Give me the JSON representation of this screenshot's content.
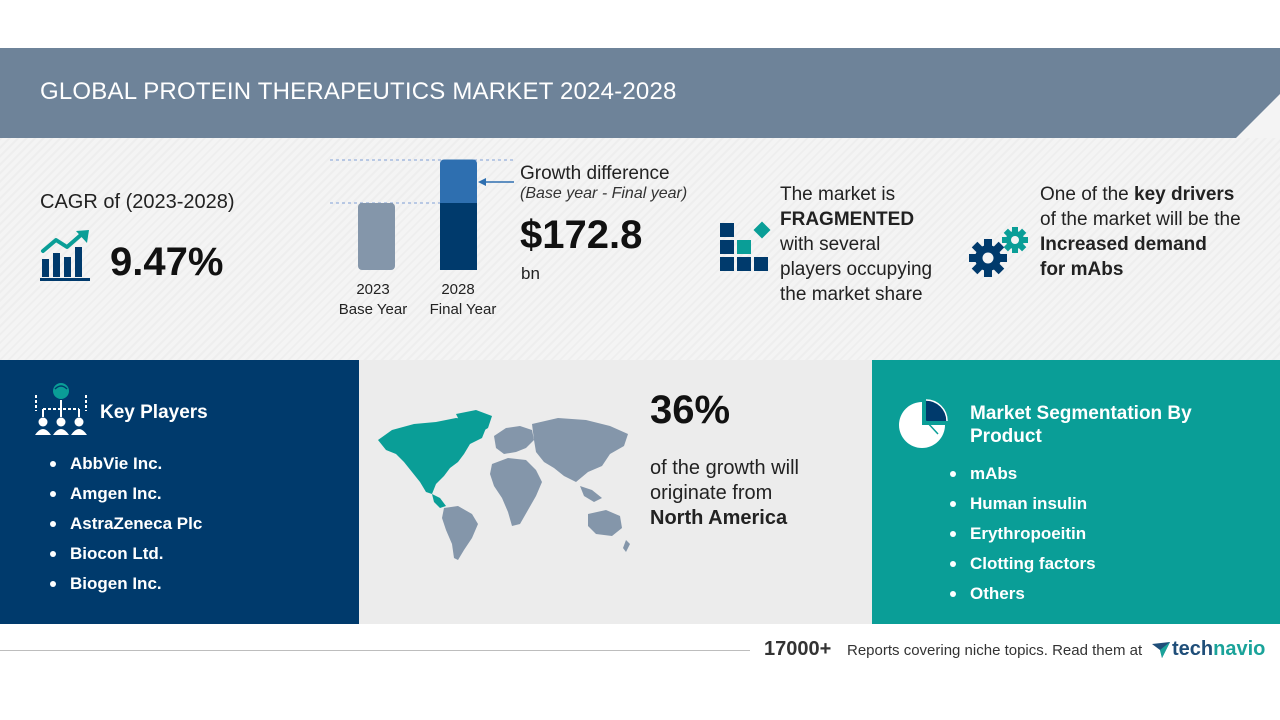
{
  "header": {
    "title": "GLOBAL PROTEIN THERAPEUTICS MARKET 2024-2028"
  },
  "cagr": {
    "label": "CAGR of (2023-2028)",
    "value": "9.47%",
    "icon": "growth-chart-icon"
  },
  "growth_chart": {
    "bars": [
      {
        "year": "2023",
        "caption": "Base Year",
        "value": 1.0,
        "color": "#8496aa"
      },
      {
        "year": "2028",
        "caption": "Final Year",
        "value": 1.65,
        "base_portion": 1.0,
        "base_color": "#003a6c",
        "increment_color": "#2e6fb0"
      }
    ]
  },
  "growth": {
    "title": "Growth difference",
    "subtitle": "(Base year - Final year)",
    "value": "$172.8",
    "unit": "bn"
  },
  "fragmented": {
    "icon": "blocks-icon",
    "line1": "The market is",
    "emphasis": "FRAGMENTED",
    "line3": "with several",
    "line4": "players occupying",
    "line5": "the market share"
  },
  "drivers": {
    "icon": "gears-icon",
    "pre": "One of the ",
    "emphasis1": "key drivers",
    "line2": "of the market will be the",
    "emphasis2": "Increased demand",
    "emphasis3": "for mAbs"
  },
  "key_players": {
    "title": "Key Players",
    "icon": "network-people-icon",
    "items": [
      "AbbVie Inc.",
      "Amgen Inc.",
      "AstraZeneca Plc",
      "Biocon Ltd.",
      "Biogen Inc."
    ]
  },
  "geography": {
    "percent": "36%",
    "line1": "of the growth will",
    "line2": "originate from",
    "region": "North America",
    "icon": "world-map-icon",
    "highlight_color": "#0a9e97",
    "base_color": "#8496aa"
  },
  "segmentation": {
    "title": "Market Segmentation By Product",
    "icon": "pie-chart-icon",
    "items": [
      "mAbs",
      "Human insulin",
      "Erythropoeitin",
      "Clotting factors",
      "Others"
    ]
  },
  "footer": {
    "count": "17000+",
    "text": "Reports covering niche topics. Read them at",
    "brand_a": "tech",
    "brand_b": "navio",
    "brand_icon": "technavio-logo-icon"
  },
  "colors": {
    "navy": "#003a6c",
    "teal": "#0a9e97",
    "slate": "#6e8399"
  }
}
